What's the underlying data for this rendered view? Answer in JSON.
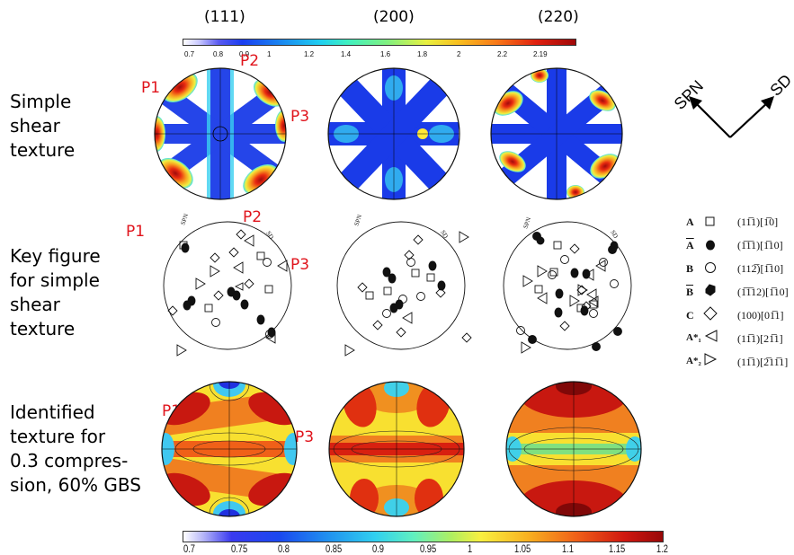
{
  "columns": [
    "(111)",
    "(200)",
    "(220)"
  ],
  "rows": [
    "Simple shear texture",
    "Key figure for simple shear texture",
    "Identified texture for 0.3 compres-sion, 60% GBS"
  ],
  "row_labels_lines": {
    "row1": [
      "Simple",
      "shear",
      "texture"
    ],
    "row2": [
      "Key figure",
      "for simple",
      "shear",
      "texture"
    ],
    "row3": [
      "Identified",
      "texture for",
      "0.3 compres-",
      "sion, 60% GBS"
    ]
  },
  "pole_labels": [
    "P1",
    "P2",
    "P3"
  ],
  "axes_labels": {
    "spn": "SPN",
    "sd": "SD"
  },
  "top_colorbar": {
    "ticks": [
      "0.7",
      "0.8",
      "0.9",
      "1",
      "1.2",
      "1.4",
      "1.6",
      "1.8",
      "2",
      "2.2",
      "2.19"
    ],
    "range": [
      0.7,
      2.19
    ]
  },
  "bottom_colorbar": {
    "ticks": [
      "0.7",
      "0.75",
      "0.8",
      "0.85",
      "0.9",
      "0.95",
      "1",
      "1.05",
      "1.1",
      "1.15",
      "1.2"
    ],
    "range": [
      0.7,
      1.2
    ]
  },
  "legend": [
    {
      "symbol": "A",
      "overbar": false,
      "marker": "square",
      "label": "(11̅1)[1̅0]"
    },
    {
      "symbol": "A",
      "overbar": true,
      "marker": "filled-leaf",
      "label": "(1̅1̅1)[1̅10]"
    },
    {
      "symbol": "B",
      "overbar": false,
      "marker": "circle",
      "label": "(112̅)[1̅10]"
    },
    {
      "symbol": "B",
      "overbar": true,
      "marker": "filled-hex",
      "label": "(1̅1̅12)[1̅10]"
    },
    {
      "symbol": "C",
      "overbar": false,
      "marker": "diamond",
      "label": "(100)[01̅1]"
    },
    {
      "symbol": "A*₁",
      "overbar": false,
      "marker": "triangle-left",
      "label": "(11̅1)[21̅1]"
    },
    {
      "symbol": "A*₂",
      "overbar": false,
      "marker": "triangle-right",
      "label": "(11̅1)[2̅11̅1]"
    }
  ],
  "legend_display": [
    {
      "sym": "A",
      "label": "(11̄̅)[1̅̄ 0]"
    }
  ],
  "colors": {
    "pole_label": "#e0141c",
    "hot": "#a50f0f",
    "cold": "#1a2bd8"
  }
}
